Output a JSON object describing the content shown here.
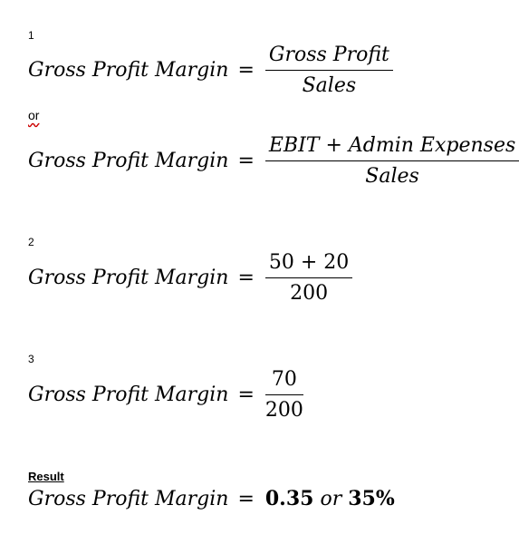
{
  "step1": {
    "number": "1",
    "eq1": {
      "lhs": "Gross Profit Margin",
      "eq": "=",
      "numerator": "Gross Profit",
      "denominator": "Sales"
    },
    "or_word": "or",
    "eq2": {
      "lhs": "Gross Profit Margin",
      "eq": "=",
      "num_left": "EBIT",
      "num_plus": "+",
      "num_right": "Admin Expenses",
      "denominator": "Sales"
    }
  },
  "step2": {
    "number": "2",
    "lhs": "Gross Profit Margin",
    "eq": "=",
    "numerator": "50 + 20",
    "denominator": "200"
  },
  "step3": {
    "number": "3",
    "lhs": "Gross Profit Margin",
    "eq": "=",
    "numerator": "70",
    "denominator": "200"
  },
  "result": {
    "label": "Result",
    "lhs": "Gross Profit Margin",
    "eq": "=",
    "value": "0.35",
    "or_word": "or",
    "percent": "35%"
  }
}
